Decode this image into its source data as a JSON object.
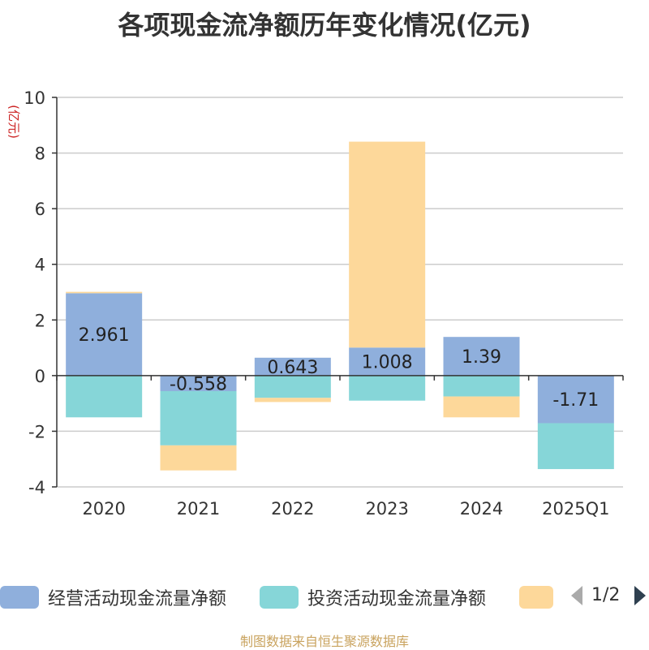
{
  "chart_data": {
    "type": "bar",
    "stacked": true,
    "title": "各项现金流净额历年变化情况(亿元)",
    "ylabel": "(亿元)",
    "ylim": [
      -4,
      10
    ],
    "yticks": [
      -4,
      -2,
      0,
      2,
      4,
      6,
      8,
      10
    ],
    "grid": true,
    "legend_position": "bottom",
    "categories": [
      "2020",
      "2021",
      "2022",
      "2023",
      "2024",
      "2025Q1"
    ],
    "series": [
      {
        "name": "经营活动现金流量净额",
        "color": "#8fafdc",
        "values": [
          2.961,
          -0.558,
          0.643,
          1.008,
          1.39,
          -1.71
        ],
        "labels": [
          "2.961",
          "-0.558",
          "0.643",
          "1.008",
          "1.39",
          "-1.71"
        ]
      },
      {
        "name": "投资活动现金流量净额",
        "color": "#86d6d8",
        "values": [
          -1.5,
          -1.95,
          -0.8,
          -0.9,
          -0.75,
          -1.65
        ]
      },
      {
        "name": "",
        "color": "#fdd89a",
        "values": [
          0.05,
          -0.9,
          -0.15,
          7.4,
          -0.75,
          0.0
        ]
      }
    ]
  },
  "legend": {
    "pager": "1/2",
    "prev_icon": "triangle-left-icon",
    "next_icon": "triangle-right-icon"
  },
  "source": "制图数据来自恒生聚源数据库"
}
